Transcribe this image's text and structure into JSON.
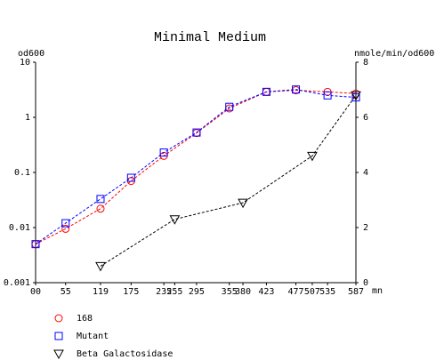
{
  "chart_data": {
    "type": "line",
    "title": "Minimal Medium",
    "y_label": "od600",
    "y2_label": "nmole/min/od600",
    "x_label": "mn",
    "xlim": [
      0,
      587
    ],
    "xticks": [
      {
        "value": 0,
        "label": "00"
      },
      55,
      119,
      175,
      235,
      255,
      295,
      355,
      380,
      423,
      477,
      507,
      535,
      587
    ],
    "ylim": [
      0.001,
      10
    ],
    "log_y": true,
    "yticks": [
      0.001,
      0.01,
      0.1,
      1,
      10
    ],
    "y2lim": [
      0,
      8
    ],
    "y2ticks": [
      0,
      2,
      4,
      6,
      8
    ],
    "series": [
      {
        "name": "168",
        "color": "#ff0000",
        "marker": "circle",
        "x": [
          0,
          55,
          119,
          175,
          235,
          295,
          355,
          423,
          477,
          535,
          587
        ],
        "values": [
          0.005,
          0.0095,
          0.022,
          0.07,
          0.2,
          0.52,
          1.45,
          2.9,
          3.1,
          2.9,
          2.7
        ]
      },
      {
        "name": "Mutant",
        "color": "#0000ff",
        "marker": "square",
        "x": [
          0,
          55,
          119,
          175,
          235,
          295,
          355,
          423,
          477,
          535,
          587
        ],
        "values": [
          0.005,
          0.012,
          0.033,
          0.08,
          0.23,
          0.53,
          1.55,
          2.9,
          3.2,
          2.5,
          2.3
        ]
      },
      {
        "name": "Beta Galactosidase",
        "color": "#000000",
        "marker": "triangle",
        "axis": "y2",
        "x": [
          119,
          255,
          380,
          507,
          587
        ],
        "values": [
          0.6,
          2.3,
          2.9,
          4.6,
          6.8
        ]
      }
    ]
  }
}
